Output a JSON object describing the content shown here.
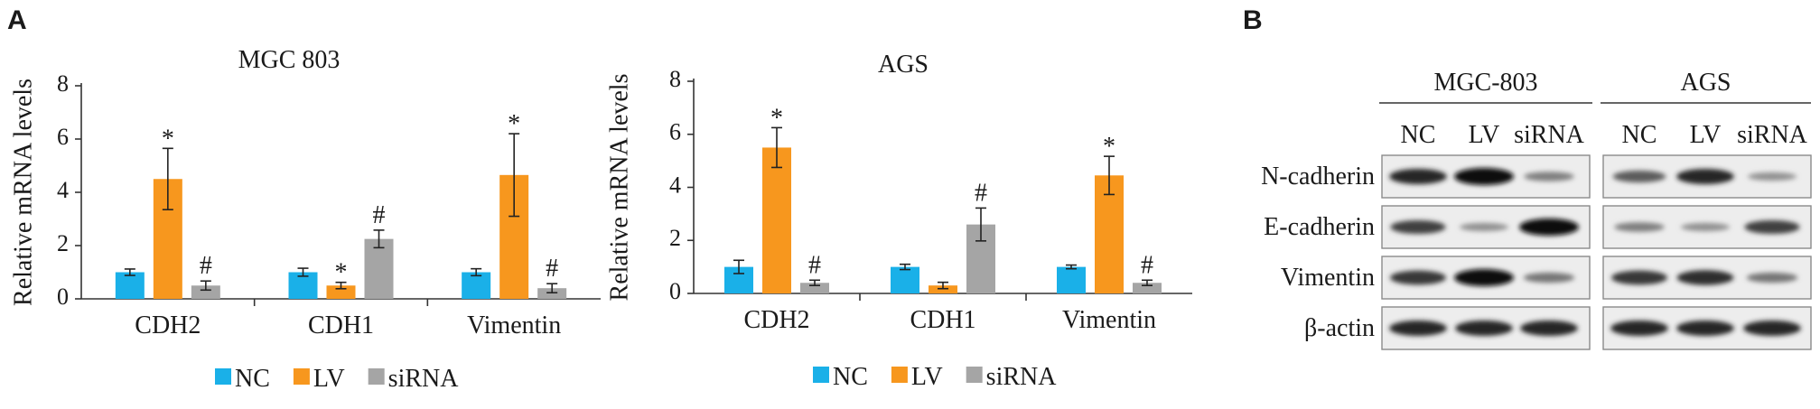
{
  "panels": {
    "a": "A",
    "b": "B"
  },
  "colors": {
    "NC": "#1ab0e8",
    "LV": "#f7971e",
    "siRNA": "#a5a5a5"
  },
  "chart_data": [
    {
      "type": "bar",
      "title": "MGC 803",
      "ylabel": "Relative mRNA levels",
      "ylim": [
        0,
        8
      ],
      "yticks": [
        "0",
        "2",
        "4",
        "6",
        "8"
      ],
      "categories": [
        "CDH2",
        "CDH1",
        "Vimentin"
      ],
      "legend_position": "bottom",
      "series": [
        {
          "name": "NC",
          "values": [
            1.0,
            1.0,
            1.0
          ],
          "errors": [
            0.12,
            0.15,
            0.13
          ],
          "marks": [
            "",
            "",
            ""
          ]
        },
        {
          "name": "LV",
          "values": [
            4.5,
            0.5,
            4.65
          ],
          "errors": [
            1.15,
            0.12,
            1.55
          ],
          "marks": [
            "*",
            "*",
            "*"
          ]
        },
        {
          "name": "siRNA",
          "values": [
            0.5,
            2.25,
            0.4
          ],
          "errors": [
            0.17,
            0.33,
            0.17
          ],
          "marks": [
            "#",
            "#",
            "#"
          ]
        }
      ]
    },
    {
      "type": "bar",
      "title": "AGS",
      "ylabel": "Relative mRNA levels",
      "ylim": [
        0,
        8
      ],
      "yticks": [
        "0",
        "2",
        "4",
        "6",
        "8"
      ],
      "categories": [
        "CDH2",
        "CDH1",
        "Vimentin"
      ],
      "legend_position": "bottom",
      "series": [
        {
          "name": "NC",
          "values": [
            1.0,
            1.0,
            1.0
          ],
          "errors": [
            0.25,
            0.1,
            0.07
          ],
          "marks": [
            "",
            "",
            ""
          ]
        },
        {
          "name": "LV",
          "values": [
            5.5,
            0.3,
            4.45
          ],
          "errors": [
            0.75,
            0.12,
            0.72
          ],
          "marks": [
            "*",
            "",
            "*"
          ]
        },
        {
          "name": "siRNA",
          "values": [
            0.4,
            2.6,
            0.4
          ],
          "errors": [
            0.1,
            0.62,
            0.1
          ],
          "marks": [
            "#",
            "#",
            "#"
          ]
        }
      ]
    }
  ],
  "blot": {
    "groups": [
      "MGC-803",
      "AGS"
    ],
    "lanes": [
      "NC",
      "LV",
      "siRNA"
    ],
    "proteins": [
      "N-cadherin",
      "E-cadherin",
      "Vimentin",
      "β-actin"
    ],
    "intensities": [
      [
        [
          0.85,
          1.0,
          0.35
        ],
        [
          0.55,
          0.85,
          0.25
        ]
      ],
      [
        [
          0.7,
          0.25,
          1.0
        ],
        [
          0.35,
          0.25,
          0.7
        ]
      ],
      [
        [
          0.75,
          1.0,
          0.4
        ],
        [
          0.75,
          0.8,
          0.4
        ]
      ],
      [
        [
          0.85,
          0.85,
          0.85
        ],
        [
          0.85,
          0.85,
          0.85
        ]
      ]
    ]
  }
}
